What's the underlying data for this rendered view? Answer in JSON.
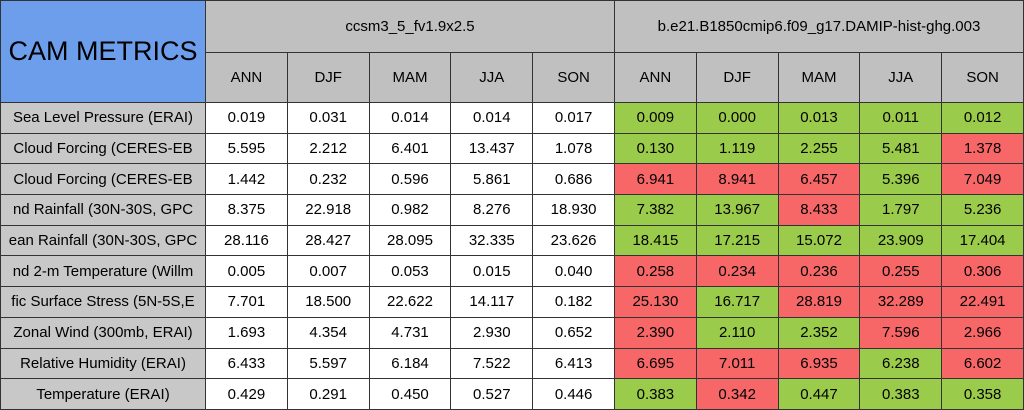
{
  "table": {
    "title": "CAM METRICS",
    "groups": [
      "ccsm3_5_fv1.9x2.5",
      "b.e21.B1850cmip6.f09_g17.DAMIP-hist-ghg.003"
    ],
    "seasons": [
      "ANN",
      "DJF",
      "MAM",
      "JJA",
      "SON"
    ],
    "colors": {
      "neutral": "#ffffff",
      "good": "#9bcb4b",
      "bad": "#f76767"
    },
    "rows": [
      {
        "label": "Sea Level Pressure (ERAI)",
        "values": [
          "0.019",
          "0.031",
          "0.014",
          "0.014",
          "0.017",
          "0.009",
          "0.000",
          "0.013",
          "0.011",
          "0.012"
        ],
        "status": [
          "good",
          "good",
          "good",
          "good",
          "good"
        ]
      },
      {
        "label": "Cloud Forcing (CERES-EB",
        "values": [
          "5.595",
          "2.212",
          "6.401",
          "13.437",
          "1.078",
          "0.130",
          "1.119",
          "2.255",
          "5.481",
          "1.378"
        ],
        "status": [
          "good",
          "good",
          "good",
          "good",
          "bad"
        ]
      },
      {
        "label": "Cloud Forcing (CERES-EB",
        "values": [
          "1.442",
          "0.232",
          "0.596",
          "5.861",
          "0.686",
          "6.941",
          "8.941",
          "6.457",
          "5.396",
          "7.049"
        ],
        "status": [
          "bad",
          "bad",
          "bad",
          "good",
          "bad"
        ]
      },
      {
        "label": "nd Rainfall (30N-30S, GPC",
        "values": [
          "8.375",
          "22.918",
          "0.982",
          "8.276",
          "18.930",
          "7.382",
          "13.967",
          "8.433",
          "1.797",
          "5.236"
        ],
        "status": [
          "good",
          "good",
          "bad",
          "good",
          "good"
        ]
      },
      {
        "label": "ean Rainfall (30N-30S, GPC",
        "values": [
          "28.116",
          "28.427",
          "28.095",
          "32.335",
          "23.626",
          "18.415",
          "17.215",
          "15.072",
          "23.909",
          "17.404"
        ],
        "status": [
          "good",
          "good",
          "good",
          "good",
          "good"
        ]
      },
      {
        "label": "nd 2-m Temperature (Willm",
        "values": [
          "0.005",
          "0.007",
          "0.053",
          "0.015",
          "0.040",
          "0.258",
          "0.234",
          "0.236",
          "0.255",
          "0.306"
        ],
        "status": [
          "bad",
          "bad",
          "bad",
          "bad",
          "bad"
        ]
      },
      {
        "label": "fic Surface Stress (5N-5S,E",
        "values": [
          "7.701",
          "18.500",
          "22.622",
          "14.117",
          "0.182",
          "25.130",
          "16.717",
          "28.819",
          "32.289",
          "22.491"
        ],
        "status": [
          "bad",
          "good",
          "bad",
          "bad",
          "bad"
        ]
      },
      {
        "label": "Zonal Wind (300mb, ERAI)",
        "values": [
          "1.693",
          "4.354",
          "4.731",
          "2.930",
          "0.652",
          "2.390",
          "2.110",
          "2.352",
          "7.596",
          "2.966"
        ],
        "status": [
          "bad",
          "good",
          "good",
          "bad",
          "bad"
        ]
      },
      {
        "label": "Relative Humidity (ERAI)",
        "values": [
          "6.433",
          "5.597",
          "6.184",
          "7.522",
          "6.413",
          "6.695",
          "7.011",
          "6.935",
          "6.238",
          "6.602"
        ],
        "status": [
          "bad",
          "bad",
          "bad",
          "good",
          "bad"
        ]
      },
      {
        "label": "Temperature (ERAI)",
        "values": [
          "0.429",
          "0.291",
          "0.450",
          "0.527",
          "0.446",
          "0.383",
          "0.342",
          "0.447",
          "0.383",
          "0.358"
        ],
        "status": [
          "good",
          "bad",
          "good",
          "good",
          "good"
        ]
      }
    ]
  }
}
